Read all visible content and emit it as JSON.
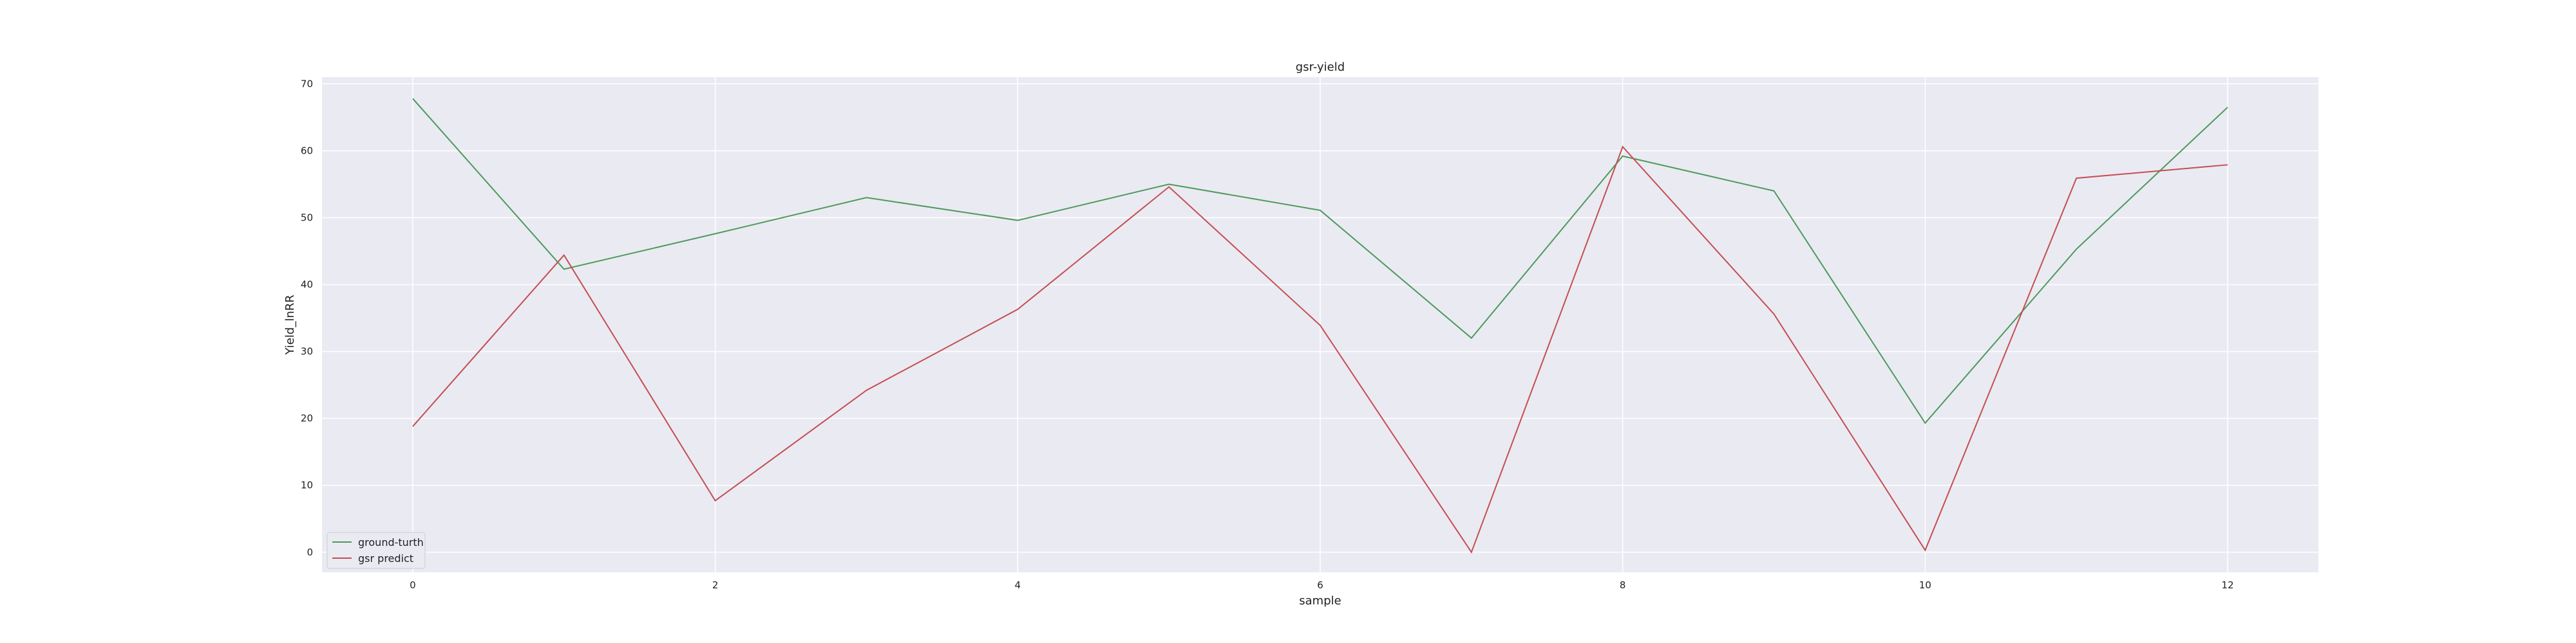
{
  "chart_data": {
    "type": "line",
    "title": "gsr-yield",
    "xlabel": "sample",
    "ylabel": "Yield_lnRR",
    "x": [
      0,
      1,
      2,
      3,
      4,
      5,
      6,
      7,
      8,
      9,
      10,
      11,
      12
    ],
    "xlim": [
      -0.6,
      12.6
    ],
    "ylim": [
      -3,
      71
    ],
    "xticks": [
      0,
      2,
      4,
      6,
      8,
      10,
      12
    ],
    "yticks": [
      0,
      10,
      20,
      30,
      40,
      50,
      60,
      70
    ],
    "grid": true,
    "background": "#eaeaf2",
    "legend_position": "lower-left",
    "series": [
      {
        "name": "ground-turth",
        "color": "#4c9a5a",
        "values": [
          67.8,
          42.3,
          47.6,
          53.0,
          49.6,
          55.0,
          51.1,
          32.0,
          59.2,
          54.0,
          19.3,
          45.3,
          66.5
        ]
      },
      {
        "name": "gsr predict",
        "color": "#c44e52",
        "values": [
          18.8,
          44.4,
          7.7,
          24.2,
          36.3,
          54.6,
          33.9,
          0.0,
          60.6,
          35.6,
          0.3,
          55.9,
          57.9
        ]
      }
    ]
  }
}
